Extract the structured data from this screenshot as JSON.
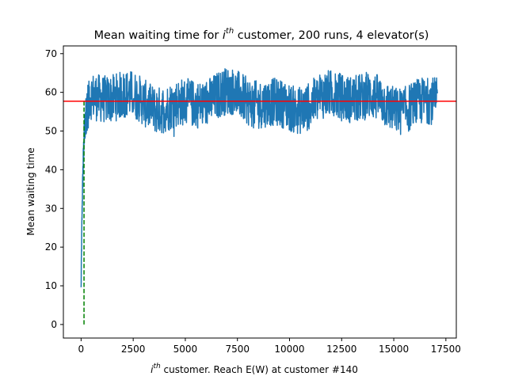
{
  "chart_data": {
    "type": "line",
    "title": {
      "prefix": "Mean waiting time for ",
      "math_base": "i",
      "math_sup": "th",
      "suffix": " customer, 200 runs, 4 elevator(s)"
    },
    "xlabel": {
      "math_base": "i",
      "math_sup": "th",
      "suffix": " customer. Reach E(W) at customer #140"
    },
    "ylabel": "Mean waiting time",
    "xlim": [
      -850,
      18000
    ],
    "ylim": [
      -3.5,
      72
    ],
    "x_ticks": [
      0,
      2500,
      5000,
      7500,
      10000,
      12500,
      15000,
      17500
    ],
    "x_tick_labels": [
      "0",
      "2500",
      "5000",
      "7500",
      "10000",
      "12500",
      "15000",
      "17500"
    ],
    "y_ticks": [
      0,
      10,
      20,
      30,
      40,
      50,
      60,
      70
    ],
    "y_tick_labels": [
      "0",
      "10",
      "20",
      "30",
      "40",
      "50",
      "60",
      "70"
    ],
    "grid": false,
    "series": [
      {
        "kind": "noisy-band",
        "color": "#1f77b4",
        "x_range": [
          0,
          17100
        ],
        "start_value": 9,
        "approx_min": 46.5,
        "approx_max": 68,
        "typical_band": [
          51,
          64
        ],
        "mean": 57.7
      },
      {
        "kind": "dashed-vertical",
        "color": "#008000",
        "x": 140,
        "y_range": [
          0,
          57.7
        ]
      },
      {
        "kind": "horizontal-line",
        "color": "#ff0000",
        "y": 57.7
      }
    ]
  }
}
